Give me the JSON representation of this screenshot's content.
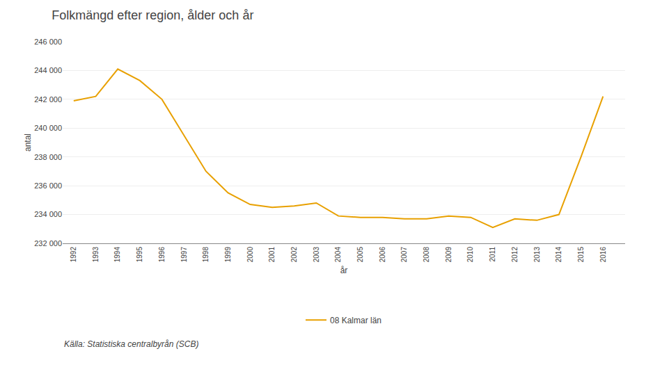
{
  "chart_data": {
    "type": "line",
    "title": "Folkmängd efter region, ålder och år",
    "y_label": "antal",
    "x_label": "år",
    "annotations": [
      "Källa: Statistiska centralbyrån (SCB)"
    ],
    "x": [
      1992,
      1993,
      1994,
      1995,
      1996,
      1997,
      1998,
      1999,
      2000,
      2001,
      2002,
      2003,
      2004,
      2005,
      2006,
      2007,
      2008,
      2009,
      2010,
      2011,
      2012,
      2013,
      2014,
      2015,
      2016
    ],
    "series": [
      {
        "name": "08 Kalmar län",
        "color": "#E8A000",
        "values": [
          241900,
          242200,
          244100,
          243300,
          242000,
          239500,
          237000,
          235500,
          234700,
          234500,
          234600,
          234800,
          233900,
          233800,
          233800,
          233700,
          233700,
          233900,
          233800,
          233100,
          233700,
          233600,
          234000,
          238000,
          242200
        ]
      }
    ],
    "xlim": [
      1991.5,
      2017.0
    ],
    "xticks": [
      1992,
      1993,
      1994,
      1995,
      1996,
      1997,
      1998,
      1999,
      2000,
      2001,
      2002,
      2003,
      2004,
      2005,
      2006,
      2007,
      2008,
      2009,
      2010,
      2011,
      2012,
      2013,
      2014,
      2015,
      2016
    ],
    "ylim": [
      232000,
      246000
    ],
    "yticks": [
      {
        "value": 232000,
        "label": "232 000"
      },
      {
        "value": 234000,
        "label": "234 000"
      },
      {
        "value": 236000,
        "label": "236 000"
      },
      {
        "value": 238000,
        "label": "238 000"
      },
      {
        "value": 240000,
        "label": "240 000"
      },
      {
        "value": 242000,
        "label": "242 000"
      },
      {
        "value": 244000,
        "label": "244 000"
      },
      {
        "value": 246000,
        "label": "246 000"
      }
    ],
    "grid": true,
    "legend": "bottom"
  }
}
